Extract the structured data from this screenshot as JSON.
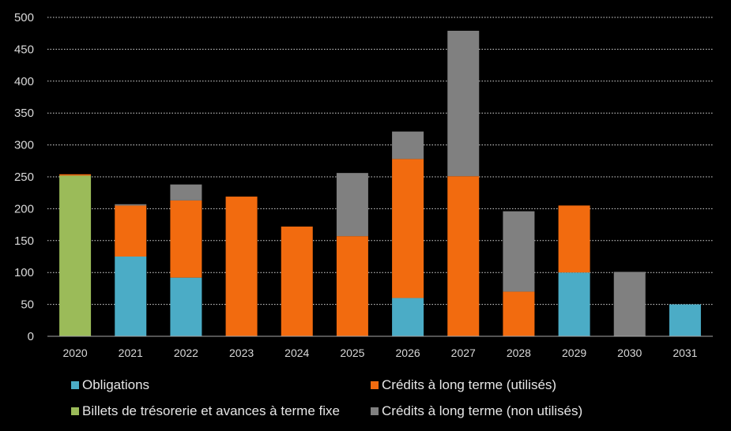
{
  "chart_data": {
    "type": "bar",
    "stacked": true,
    "categories": [
      "2020",
      "2021",
      "2022",
      "2023",
      "2024",
      "2025",
      "2026",
      "2027",
      "2028",
      "2029",
      "2030",
      "2031"
    ],
    "ylim": [
      0,
      500
    ],
    "yticks": [
      0,
      50,
      100,
      150,
      200,
      250,
      300,
      350,
      400,
      450,
      500
    ],
    "grid": "horizontal-dotted",
    "legend_position": "bottom",
    "series": [
      {
        "name": "Obligations",
        "color": "#4bacc6",
        "values": [
          0,
          125,
          92,
          0,
          0,
          0,
          60,
          0,
          0,
          100,
          0,
          50
        ]
      },
      {
        "name": "Billets de trésorerie et avances à terme fixe",
        "color": "#9bbb59",
        "values": [
          252,
          0,
          0,
          0,
          0,
          0,
          0,
          0,
          0,
          0,
          0,
          0
        ]
      },
      {
        "name": "Crédits à long terme (utilisés)",
        "color": "#f26b0f",
        "values": [
          2,
          80,
          121,
          219,
          172,
          157,
          218,
          251,
          70,
          105,
          0,
          0
        ]
      },
      {
        "name": "Crédits à long terme (non utilisés)",
        "color": "#808080",
        "values": [
          0,
          2,
          25,
          0,
          0,
          99,
          43,
          228,
          126,
          0,
          101,
          0
        ]
      }
    ],
    "legend_order": [
      0,
      2,
      1,
      3
    ]
  }
}
